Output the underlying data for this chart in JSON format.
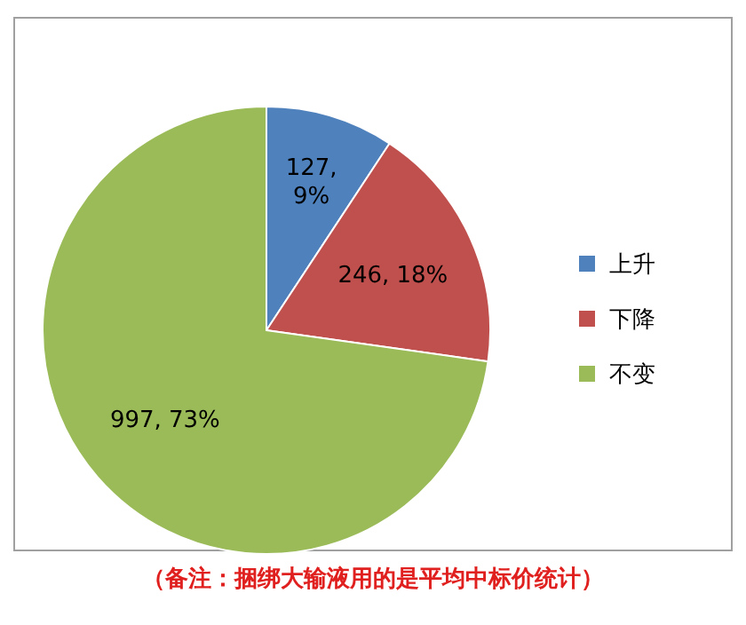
{
  "chart_data": {
    "type": "pie",
    "categories": [
      "上升",
      "下降",
      "不变"
    ],
    "values": [
      127,
      246,
      997
    ],
    "colors": [
      "#4f81bd",
      "#c0504d",
      "#9bbb59"
    ],
    "value_labels": [
      "127, 9%",
      "246, 18%",
      "997, 73%"
    ],
    "legend": "right",
    "annotations": [
      "（备注：捆绑大输液用的是平均中标价统计）"
    ]
  }
}
